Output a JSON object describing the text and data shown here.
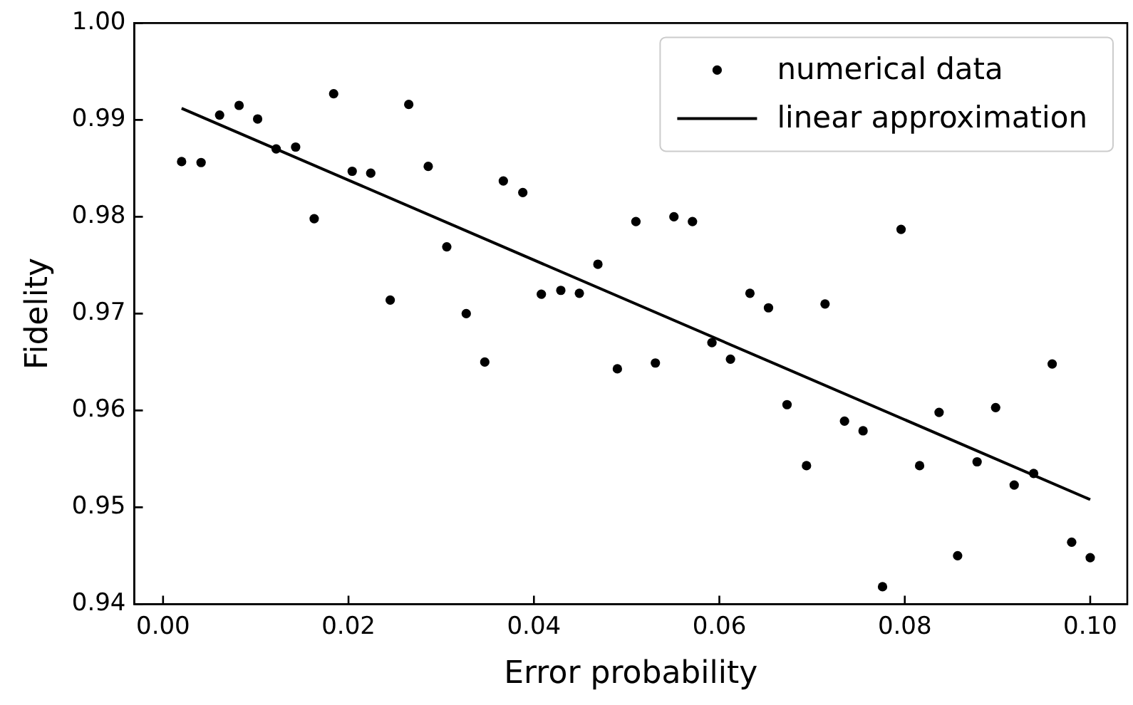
{
  "chart_data": {
    "type": "scatter",
    "xlabel": "Error probability",
    "ylabel": "Fidelity",
    "xlim": [
      -0.0031,
      0.104
    ],
    "ylim": [
      0.94,
      1.0
    ],
    "xticks": [
      {
        "value": 0,
        "label": "0.00"
      },
      {
        "value": 0.02,
        "label": "0.02"
      },
      {
        "value": 0.04,
        "label": "0.04"
      },
      {
        "value": 0.06,
        "label": "0.06"
      },
      {
        "value": 0.08,
        "label": "0.08"
      },
      {
        "value": 0.1,
        "label": "0.10"
      }
    ],
    "yticks": [
      0.94,
      0.95,
      0.96,
      0.97,
      0.98,
      0.99,
      {
        "value": 1.0,
        "label": "1.00"
      }
    ],
    "grid": false,
    "legend": "top right",
    "series": [
      {
        "name": "numerical data",
        "type": "scatter",
        "marker": "circle",
        "color": "#000000",
        "x": [
          0.002,
          0.0041,
          0.0061,
          0.0082,
          0.0102,
          0.0122,
          0.0143,
          0.0163,
          0.0184,
          0.0204,
          0.0224,
          0.0245,
          0.0265,
          0.0286,
          0.0306,
          0.0327,
          0.0347,
          0.0367,
          0.0388,
          0.0408,
          0.0429,
          0.0449,
          0.0469,
          0.049,
          0.051,
          0.0531,
          0.0551,
          0.0571,
          0.0592,
          0.0612,
          0.0633,
          0.0653,
          0.0673,
          0.0694,
          0.0714,
          0.0735,
          0.0755,
          0.0776,
          0.0796,
          0.0816,
          0.0837,
          0.0857,
          0.0878,
          0.0898,
          0.0918,
          0.0939,
          0.0959,
          0.098,
          0.1
        ],
        "values": [
          0.9857,
          0.9856,
          0.9905,
          0.9915,
          0.9901,
          0.987,
          0.9872,
          0.9798,
          0.9927,
          0.9847,
          0.9845,
          0.9714,
          0.9916,
          0.9852,
          0.9769,
          0.97,
          0.965,
          0.9837,
          0.9825,
          0.972,
          0.9724,
          0.9721,
          0.9751,
          0.9643,
          0.9795,
          0.9649,
          0.98,
          0.9795,
          0.967,
          0.9653,
          0.9721,
          0.9706,
          0.9606,
          0.9543,
          0.971,
          0.9589,
          0.9579,
          0.9418,
          0.9787,
          0.9543,
          0.9598,
          0.945,
          0.9547,
          0.9603,
          0.9523,
          0.9535,
          0.9648,
          0.9464,
          0.9448
        ]
      },
      {
        "name": "linear approximation",
        "type": "line",
        "marker": "none",
        "line_style": "solid",
        "color": "#000000",
        "x": [
          0.002,
          0.1
        ],
        "values": [
          0.9912,
          0.9508
        ]
      }
    ]
  }
}
